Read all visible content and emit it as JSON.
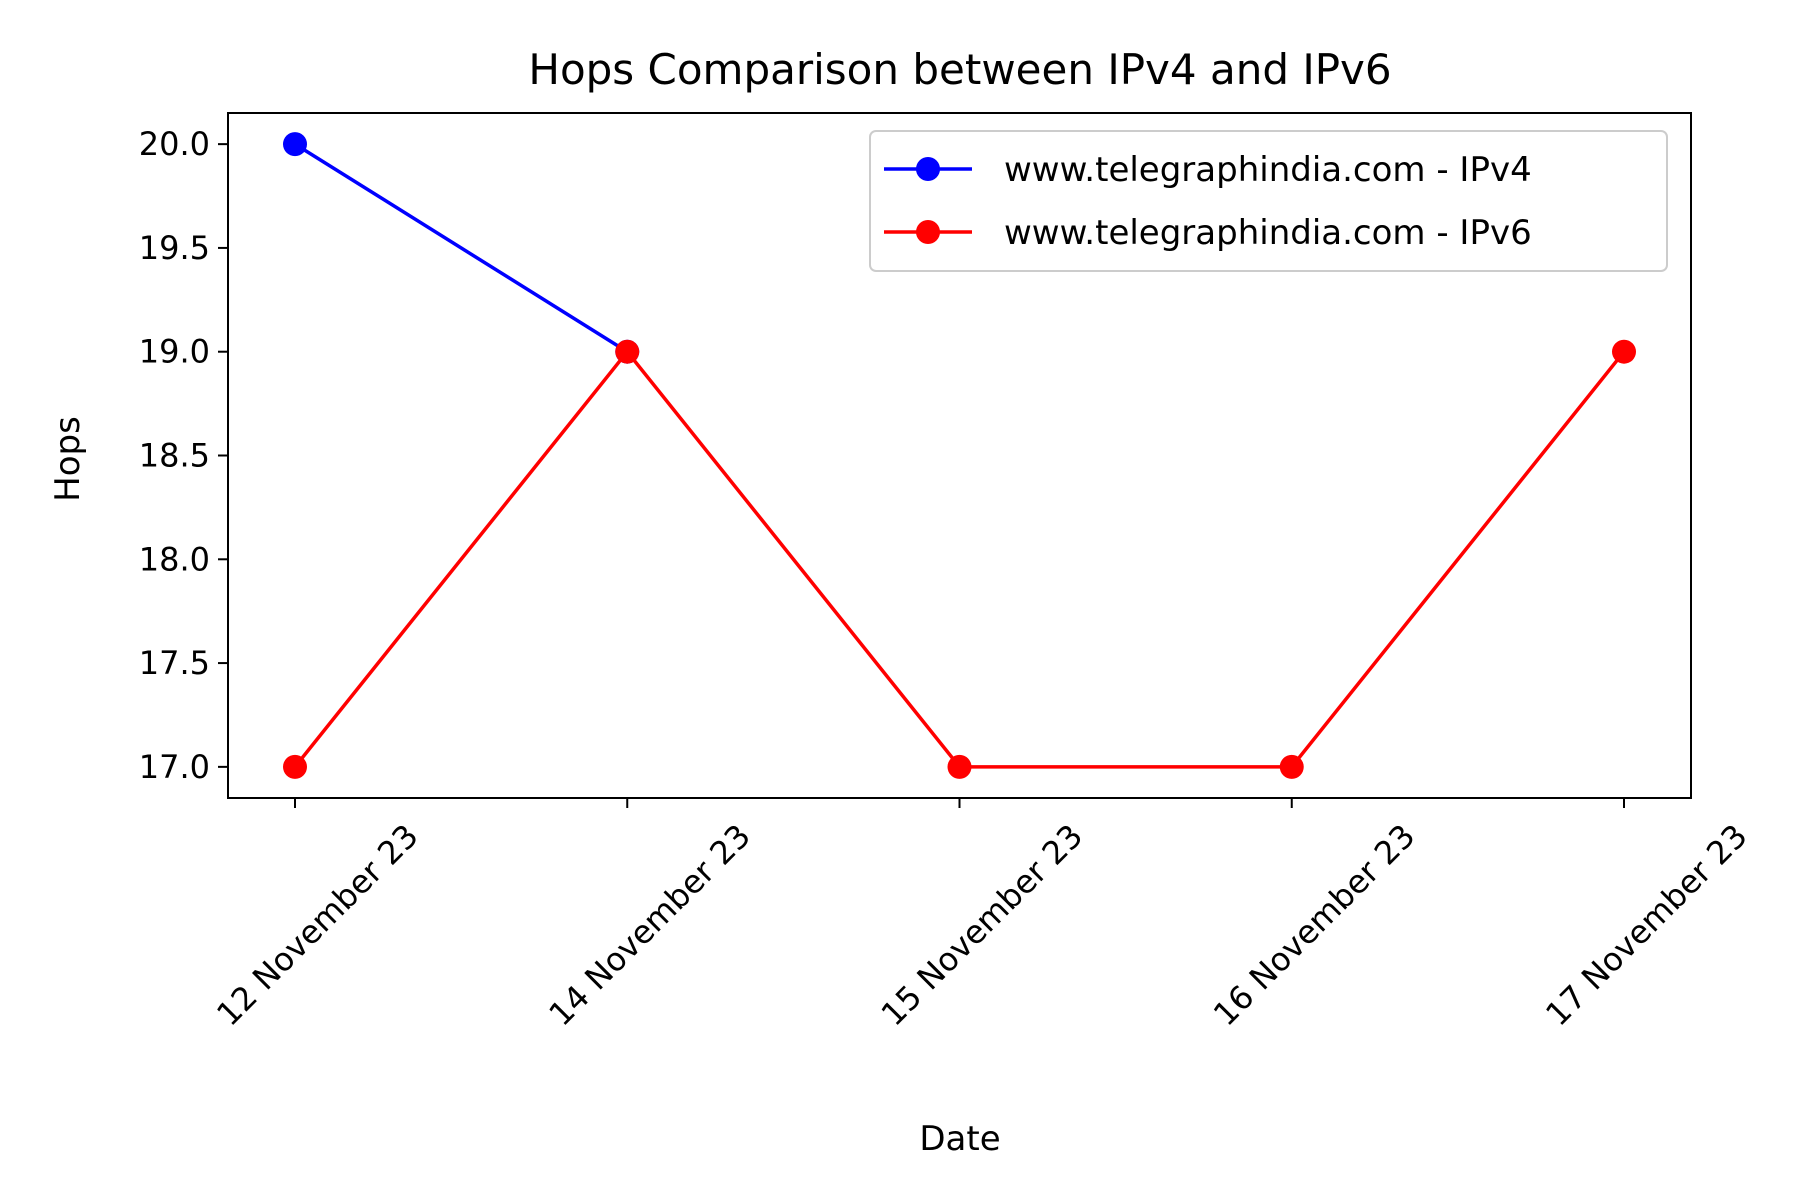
{
  "chart_data": {
    "type": "line",
    "title": "Hops Comparison between IPv4 and IPv6",
    "xlabel": "Date",
    "ylabel": "Hops",
    "categories": [
      "12 November 23",
      "14 November 23",
      "15 November 23",
      "16 November 23",
      "17 November 23"
    ],
    "ylim": [
      16.85,
      20.15
    ],
    "yticks": [
      17.0,
      17.5,
      18.0,
      18.5,
      19.0,
      19.5,
      20.0
    ],
    "yticks_labels": [
      "17.0",
      "17.5",
      "18.0",
      "18.5",
      "19.0",
      "19.5",
      "20.0"
    ],
    "grid": false,
    "legend_position": "top-right",
    "series": [
      {
        "name": "www.telegraphindia.com - IPv4",
        "color": "#0000ff",
        "marker": "circle",
        "values": [
          20,
          19,
          null,
          null,
          null
        ]
      },
      {
        "name": "www.telegraphindia.com - IPv6",
        "color": "#ff0000",
        "marker": "circle",
        "values": [
          17,
          19,
          17,
          17,
          19
        ]
      }
    ]
  }
}
